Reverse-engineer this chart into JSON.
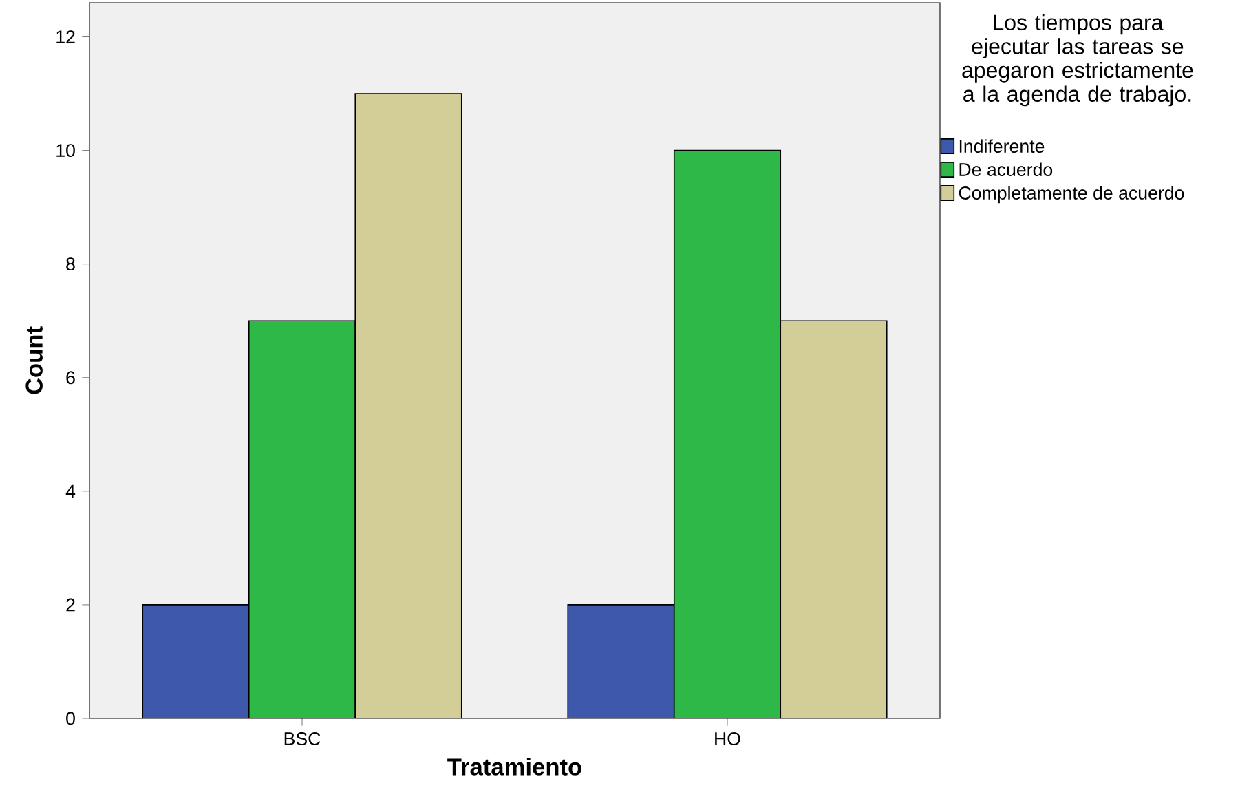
{
  "chart_data": {
    "type": "bar",
    "xlabel": "Tratamiento",
    "ylabel": "Count",
    "legend_title": "Los tiempos para ejecutar las tareas se apegaron estrictamente a la agenda de trabajo.",
    "categories": [
      "BSC",
      "HO"
    ],
    "series": [
      {
        "name": "Indiferente",
        "color": "#3e58ac",
        "values": [
          2,
          2
        ]
      },
      {
        "name": "De acuerdo",
        "color": "#2eb848",
        "values": [
          7,
          10
        ]
      },
      {
        "name": "Completamente de acuerdo",
        "color": "#d3ce97",
        "values": [
          11,
          7
        ]
      }
    ],
    "ylim": [
      0,
      12.6
    ],
    "yticks": [
      0,
      2,
      4,
      6,
      8,
      10,
      12
    ],
    "grid": false,
    "legend": "right"
  }
}
